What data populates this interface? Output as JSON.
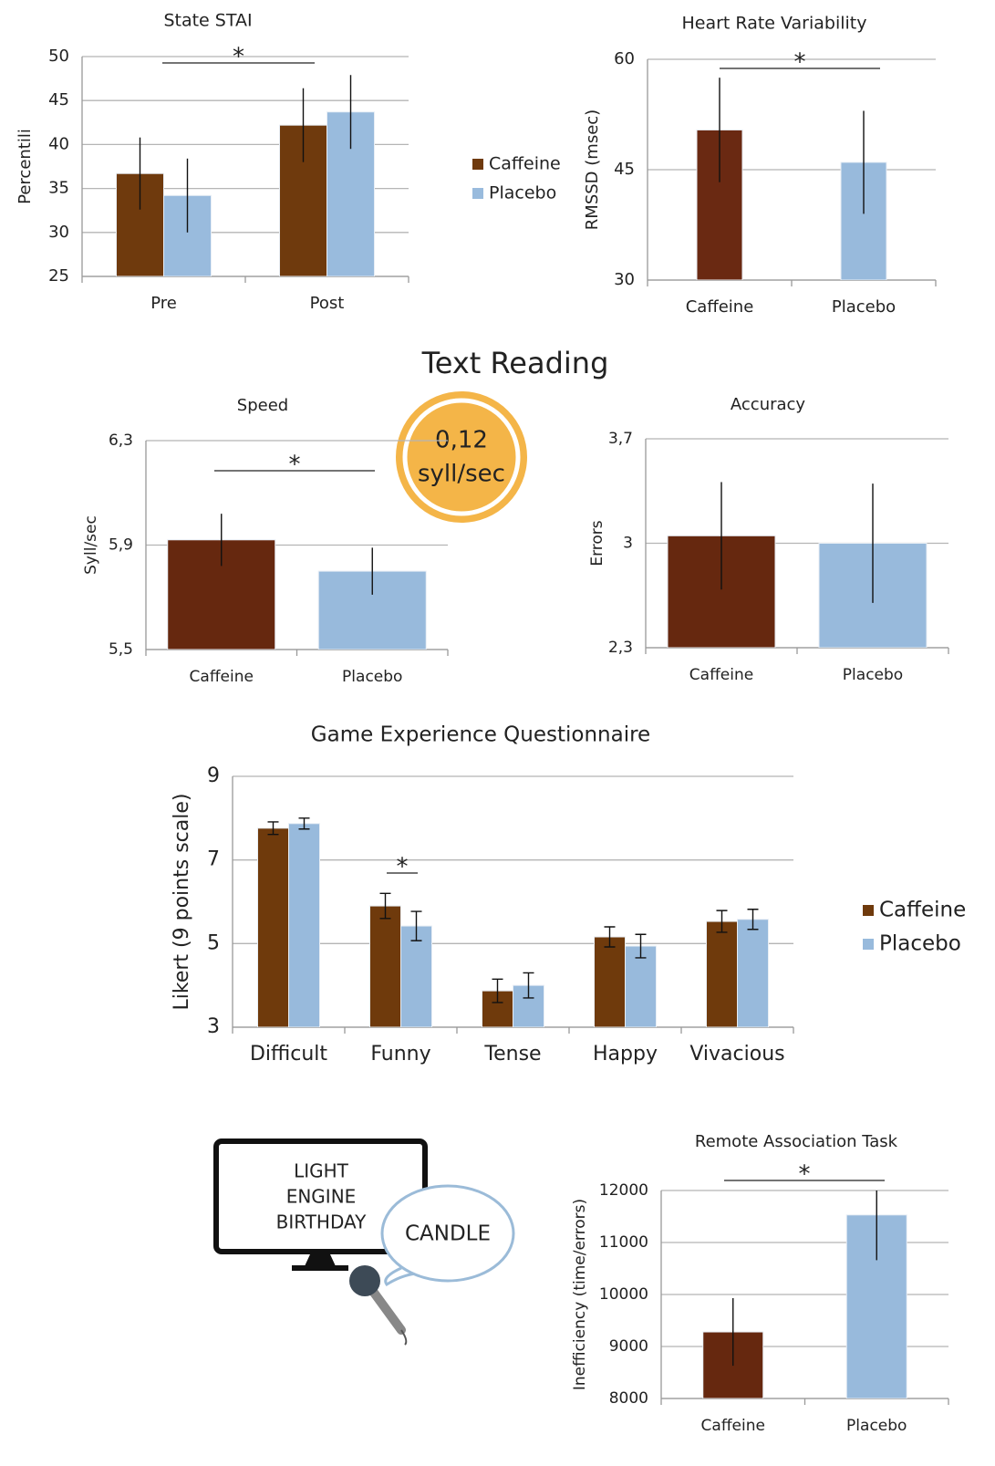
{
  "chart_data": [
    {
      "type": "bar",
      "title": "State STAI",
      "y_label": "Percentili",
      "categories": [
        "Pre",
        "Post"
      ],
      "series": [
        {
          "name": "Caffeine",
          "color": "#6f3a0d",
          "values": [
            36.7,
            42.2
          ],
          "errors": [
            4.1,
            4.2
          ]
        },
        {
          "name": "Placebo",
          "color": "#99bbdd",
          "values": [
            34.2,
            43.7
          ],
          "errors": [
            4.2,
            4.2
          ]
        }
      ],
      "ylim": [
        25,
        50
      ],
      "yticks": [
        25,
        30,
        35,
        40,
        45,
        50
      ],
      "grid": true,
      "legend": "right",
      "annotation": "*"
    },
    {
      "type": "bar",
      "title": "Heart Rate Variability",
      "y_label": "RMSSD (msec)",
      "categories": [
        "Caffeine",
        "Placebo"
      ],
      "values": [
        50.4,
        46.0
      ],
      "errors": [
        7.1,
        7.0
      ],
      "colors": [
        "#6a2912",
        "#98badc"
      ],
      "ylim": [
        30,
        60
      ],
      "yticks": [
        30,
        45,
        60
      ],
      "grid": true,
      "annotation": "*"
    },
    {
      "type": "bar",
      "title": "Speed",
      "y_label": "Syll/sec",
      "categories": [
        "Caffeine",
        "Placebo"
      ],
      "values": [
        5.92,
        5.8
      ],
      "errors": [
        0.1,
        0.09
      ],
      "colors": [
        "#66280f",
        "#98badc"
      ],
      "ylim": [
        5.5,
        6.3
      ],
      "yticks": [
        {
          "value": 5.5,
          "label": "5,5"
        },
        {
          "value": 5.9,
          "label": "5,9"
        },
        {
          "value": 6.3,
          "label": "6,3"
        }
      ],
      "grid": true,
      "annotation": "*"
    },
    {
      "type": "bar",
      "title": "Accuracy",
      "y_label": "Errors",
      "categories": [
        "Caffeine",
        "Placebo"
      ],
      "values": [
        3.05,
        3.0
      ],
      "errors": [
        0.36,
        0.4
      ],
      "colors": [
        "#66280f",
        "#98badc"
      ],
      "ylim": [
        2.3,
        3.7
      ],
      "yticks": [
        {
          "value": 2.3,
          "label": "2,3"
        },
        3,
        {
          "value": 3.7,
          "label": "3,7"
        }
      ],
      "grid": true
    },
    {
      "type": "bar",
      "title": "Game Experience Questionnaire",
      "y_label": "Likert (9 points scale)",
      "categories": [
        "Difficult",
        "Funny",
        "Tense",
        "Happy",
        "Vivacious"
      ],
      "series": [
        {
          "name": "Caffeine",
          "color": "#6f3a0c",
          "values": [
            7.76,
            5.9,
            3.87,
            5.16,
            5.53
          ],
          "errors": [
            0.15,
            0.3,
            0.28,
            0.24,
            0.26
          ]
        },
        {
          "name": "Placebo",
          "color": "#98badc",
          "values": [
            7.87,
            5.42,
            4.0,
            4.94,
            5.58
          ],
          "errors": [
            0.13,
            0.35,
            0.3,
            0.28,
            0.24
          ]
        }
      ],
      "ylim": [
        3,
        9
      ],
      "yticks": [
        3,
        5,
        7,
        9
      ],
      "grid": true,
      "legend": "right",
      "annotation": "*"
    },
    {
      "type": "bar",
      "title": "Remote Association Task",
      "y_label": "Inefficiency (time/errors)",
      "categories": [
        "Caffeine",
        "Placebo"
      ],
      "values": [
        9280,
        11530
      ],
      "errors": [
        650,
        870
      ],
      "colors": [
        "#66280f",
        "#98badc"
      ],
      "ylim": [
        8000,
        12000
      ],
      "yticks": [
        8000,
        9000,
        10000,
        11000,
        12000
      ],
      "grid": true,
      "annotation": "*"
    }
  ],
  "section_title": "Text Reading",
  "badge": [
    "0,12",
    "syll/sec"
  ],
  "illustration": {
    "screen_words": [
      "LIGHT",
      "ENGINE",
      "BIRTHDAY"
    ],
    "answer": "CANDLE"
  }
}
